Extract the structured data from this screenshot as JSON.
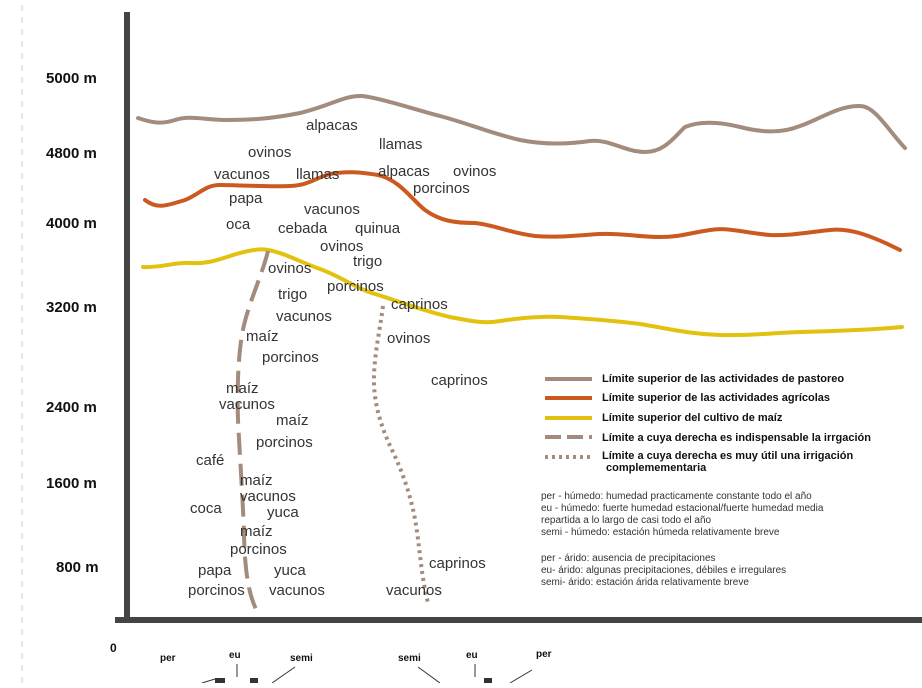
{
  "chart_data": {
    "type": "diagram",
    "y_ticks": [
      "5000 m",
      "4800 m",
      "4000 m",
      "3200 m",
      "2400 m",
      "1600 m",
      "800 m",
      "0"
    ],
    "x_ticks_left": [
      "per",
      "eu",
      "semi"
    ],
    "x_ticks_right": [
      "semi",
      "eu",
      "per"
    ],
    "lines": [
      {
        "key": "pastoreo",
        "label": "Límite superior de las actividades de pastoreo",
        "color": "#a38b7d",
        "style": "solid"
      },
      {
        "key": "agricolas",
        "label": "Límite superior de las actividades agrícolas",
        "color": "#cc5a20",
        "style": "solid"
      },
      {
        "key": "maiz",
        "label": "Límite superior del cultivo de maíz",
        "color": "#e2c20f",
        "style": "solid"
      },
      {
        "key": "irrigacion_indispensable",
        "label": "Límite a cuya derecha es indispensable la irrgación",
        "color": "#a38b7d",
        "style": "dashed"
      },
      {
        "key": "irrigacion_util",
        "label": "Límite a cuya derecha es muy útil una irrigación complemementaria",
        "color": "#a38b7d",
        "style": "dotted"
      }
    ],
    "notes_humid": [
      "per - húmedo: humedad practicamente constante todo el año",
      "eu - húmedo: fuerte humedad estacional/fuerte humedad media",
      "repartida a lo largo de casi todo el año",
      "semi - húmedo: estación húmeda relativamente breve"
    ],
    "notes_arid": [
      "per - árido: ausencia de precipitaciones",
      "eu- árido: algunas precipitaciones, débiles e irregulares",
      "semi- árido: estación árida relativamente breve"
    ],
    "labels": [
      "alpacas",
      "llamas",
      "ovinos",
      "vacunos",
      "llamas",
      "alpacas",
      "ovinos",
      "porcinos",
      "papa",
      "vacunos",
      "oca",
      "cebada",
      "quinua",
      "ovinos",
      "trigo",
      "ovinos",
      "porcinos",
      "trigo",
      "caprinos",
      "vacunos",
      "maíz",
      "ovinos",
      "porcinos",
      "caprinos",
      "maíz",
      "vacunos",
      "maíz",
      "porcinos",
      "café",
      "maíz",
      "vacunos",
      "coca",
      "yuca",
      "maíz",
      "porcinos",
      "caprinos",
      "papa",
      "yuca",
      "porcinos",
      "vacunos",
      "vacunos"
    ]
  }
}
